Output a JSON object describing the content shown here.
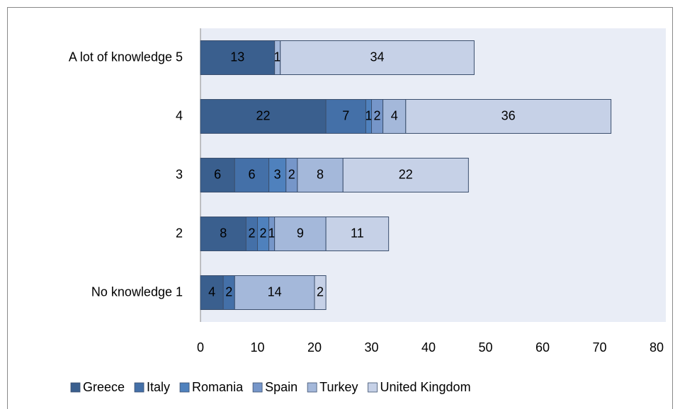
{
  "chart_data": {
    "type": "bar",
    "orientation": "horizontal",
    "stacked": true,
    "categories": [
      "No knowledge 1",
      "2",
      "3",
      "4",
      "A lot of knowledge 5"
    ],
    "series": [
      {
        "name": "Greece",
        "color": "#3a5f8e",
        "values": [
          4,
          8,
          6,
          22,
          13
        ]
      },
      {
        "name": "Italy",
        "color": "#4470a8",
        "values": [
          2,
          2,
          6,
          7,
          null
        ]
      },
      {
        "name": "Romania",
        "color": "#4f81bd",
        "values": [
          null,
          2,
          3,
          1,
          null
        ]
      },
      {
        "name": "Spain",
        "color": "#7696c9",
        "values": [
          null,
          1,
          2,
          2,
          null
        ]
      },
      {
        "name": "Turkey",
        "color": "#a4b8da",
        "values": [
          14,
          9,
          8,
          4,
          1
        ]
      },
      {
        "name": "United Kingdom",
        "color": "#c6d1e7",
        "values": [
          2,
          11,
          22,
          36,
          34
        ]
      }
    ],
    "xlim": [
      0,
      80
    ],
    "xticks": [
      0,
      10,
      20,
      30,
      40,
      50,
      60,
      70,
      80
    ],
    "legend": "bottom"
  }
}
